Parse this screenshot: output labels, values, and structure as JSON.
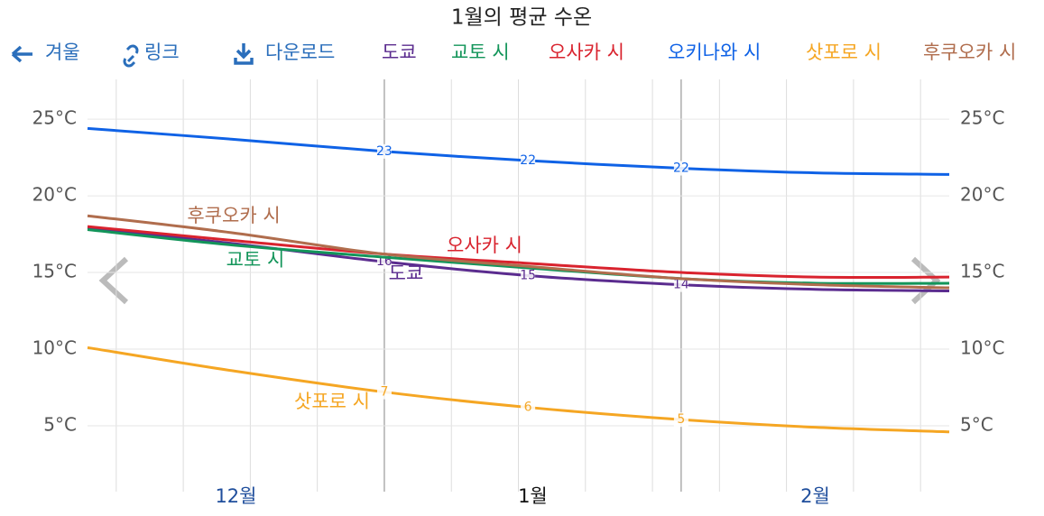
{
  "toolbar": {
    "back": "겨울",
    "link": "링크",
    "download": "다운로드"
  },
  "chart_data": {
    "type": "line",
    "title": "1월의 평균 수온",
    "x": [
      0,
      15,
      31,
      46,
      62,
      76,
      90
    ],
    "xlim": [
      0,
      90
    ],
    "xticks": [
      {
        "value": 15.5,
        "label": "12월"
      },
      {
        "value": 46.5,
        "label": "1월"
      },
      {
        "value": 76,
        "label": "2월"
      }
    ],
    "current_xtick": 1,
    "month_boundaries": [
      31,
      62
    ],
    "week_lines": [
      3,
      10,
      17,
      24,
      38,
      45,
      52,
      59,
      66,
      73,
      80,
      87
    ],
    "ylim": [
      0.7,
      27.6
    ],
    "yticks": [
      {
        "value": 5,
        "label": "5°C"
      },
      {
        "value": 10,
        "label": "10°C"
      },
      {
        "value": 15,
        "label": "15°C"
      },
      {
        "value": 20,
        "label": "20°C"
      },
      {
        "value": 25,
        "label": "25°C"
      }
    ],
    "grid": true,
    "series": [
      {
        "name": "도쿄",
        "color": "#5b2c8f",
        "values": [
          17.9,
          16.9,
          15.7,
          14.8,
          14.2,
          13.9,
          13.8
        ],
        "value_labels": [
          null,
          null,
          "16",
          "15",
          "14",
          null,
          null
        ]
      },
      {
        "name": "교토 시",
        "color": "#13955a",
        "values": [
          17.8,
          16.8,
          16.0,
          15.3,
          14.6,
          14.3,
          14.3
        ],
        "value_labels": [
          null,
          null,
          null,
          null,
          null,
          null,
          null
        ]
      },
      {
        "name": "오사카 시",
        "color": "#d9232e",
        "values": [
          18.0,
          17.1,
          16.2,
          15.6,
          15.0,
          14.7,
          14.7
        ],
        "value_labels": [
          null,
          null,
          null,
          null,
          null,
          null,
          null
        ]
      },
      {
        "name": "오키나와 시",
        "color": "#0f62e6",
        "values": [
          24.4,
          23.7,
          22.9,
          22.3,
          21.8,
          21.5,
          21.4
        ],
        "value_labels": [
          null,
          null,
          "23",
          "22",
          "22",
          null,
          null
        ]
      },
      {
        "name": "삿포로 시",
        "color": "#f5a623",
        "values": [
          10.1,
          8.6,
          7.2,
          6.2,
          5.4,
          4.9,
          4.6
        ],
        "value_labels": [
          null,
          null,
          "7",
          "6",
          "5",
          null,
          null
        ]
      },
      {
        "name": "후쿠오카 시",
        "color": "#b06d4d",
        "values": [
          18.7,
          17.6,
          16.2,
          15.4,
          14.6,
          14.2,
          14.0
        ],
        "value_labels": [
          null,
          null,
          null,
          null,
          null,
          null,
          null
        ]
      }
    ]
  }
}
